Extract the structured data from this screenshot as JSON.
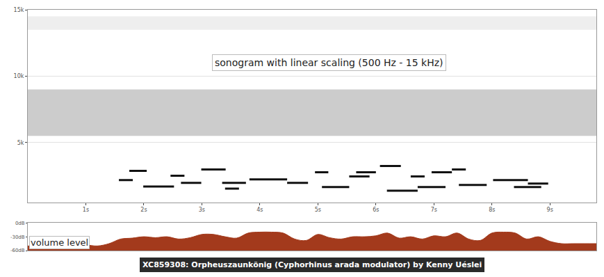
{
  "chart_data": [
    {
      "type": "spectrogram",
      "title": "sonogram with linear scaling (500 Hz - 15 kHz)",
      "color": "#111111",
      "notes": [
        {
          "start": 1.57,
          "end": 1.81,
          "frequency": 2180
        },
        {
          "start": 1.75,
          "end": 2.05,
          "frequency": 2870
        },
        {
          "start": 1.99,
          "end": 2.52,
          "frequency": 1700
        },
        {
          "start": 2.46,
          "end": 2.7,
          "frequency": 2500
        },
        {
          "start": 2.64,
          "end": 2.99,
          "frequency": 1970
        },
        {
          "start": 2.99,
          "end": 3.41,
          "frequency": 2980
        },
        {
          "start": 3.35,
          "end": 3.76,
          "frequency": 1970
        },
        {
          "start": 3.4,
          "end": 3.64,
          "frequency": 1540
        },
        {
          "start": 3.82,
          "end": 4.47,
          "frequency": 2230
        },
        {
          "start": 4.47,
          "end": 4.83,
          "frequency": 1970
        },
        {
          "start": 4.95,
          "end": 5.18,
          "frequency": 2770
        },
        {
          "start": 5.07,
          "end": 5.54,
          "frequency": 1650
        },
        {
          "start": 5.54,
          "end": 5.89,
          "frequency": 2450
        },
        {
          "start": 5.66,
          "end": 6.0,
          "frequency": 2770
        },
        {
          "start": 6.07,
          "end": 6.43,
          "frequency": 3240
        },
        {
          "start": 6.19,
          "end": 6.72,
          "frequency": 1380
        },
        {
          "start": 6.6,
          "end": 6.84,
          "frequency": 2450
        },
        {
          "start": 6.72,
          "end": 7.2,
          "frequency": 1650
        },
        {
          "start": 6.96,
          "end": 7.31,
          "frequency": 2770
        },
        {
          "start": 7.31,
          "end": 7.55,
          "frequency": 2980
        },
        {
          "start": 7.43,
          "end": 7.91,
          "frequency": 1810
        },
        {
          "start": 8.02,
          "end": 8.62,
          "frequency": 2180
        },
        {
          "start": 8.38,
          "end": 8.85,
          "frequency": 1650
        },
        {
          "start": 8.62,
          "end": 8.97,
          "frequency": 1920
        }
      ],
      "noise_bands": [
        [
          5500,
          9000
        ],
        [
          13500,
          14500
        ]
      ],
      "xlim": [
        0,
        9.8
      ],
      "xticks": [
        {
          "value": 1,
          "label": "1s"
        },
        {
          "value": 2,
          "label": "2s"
        },
        {
          "value": 3,
          "label": "3s"
        },
        {
          "value": 4,
          "label": "4s"
        },
        {
          "value": 5,
          "label": "5s"
        },
        {
          "value": 6,
          "label": "6s"
        },
        {
          "value": 7,
          "label": "7s"
        },
        {
          "value": 8,
          "label": "8s"
        },
        {
          "value": 9,
          "label": "9s"
        }
      ],
      "ylim": [
        500,
        15000
      ],
      "yticks": [
        {
          "value": 5000,
          "label": "5k"
        },
        {
          "value": 10000,
          "label": "10k"
        },
        {
          "value": 15000,
          "label": "15k"
        }
      ],
      "grid": true
    },
    {
      "type": "area",
      "title": "volume level",
      "color": "#a33a1c",
      "x": [
        0,
        0.2,
        0.4,
        0.6,
        0.8,
        1.0,
        1.2,
        1.4,
        1.6,
        1.8,
        2.0,
        2.2,
        2.4,
        2.6,
        2.8,
        3.0,
        3.2,
        3.4,
        3.6,
        3.8,
        4.0,
        4.2,
        4.4,
        4.6,
        4.8,
        5.0,
        5.2,
        5.4,
        5.6,
        5.8,
        6.0,
        6.2,
        6.4,
        6.6,
        6.8,
        7.0,
        7.2,
        7.4,
        7.6,
        7.8,
        8.0,
        8.2,
        8.4,
        8.6,
        8.8,
        9.0,
        9.2,
        9.4,
        9.6,
        9.8
      ],
      "values": [
        -50,
        -50,
        -50,
        -48,
        -50,
        -48,
        -50,
        -45,
        -35,
        -33,
        -30,
        -32,
        -30,
        -35,
        -32,
        -25,
        -25,
        -30,
        -33,
        -22,
        -20,
        -20,
        -22,
        -35,
        -38,
        -25,
        -32,
        -35,
        -30,
        -30,
        -28,
        -22,
        -33,
        -30,
        -35,
        -28,
        -30,
        -22,
        -35,
        -38,
        -22,
        -20,
        -22,
        -35,
        -30,
        -40,
        -45,
        -45,
        -45,
        -45
      ],
      "xlim": [
        0,
        9.8
      ],
      "ylim": [
        -60,
        0
      ],
      "yticks": [
        {
          "value": -60,
          "label": "-60dB"
        },
        {
          "value": -30,
          "label": "-30dB"
        },
        {
          "value": 0,
          "label": "0dB"
        }
      ],
      "tick_labels": "y"
    }
  ],
  "caption": "XC859308: Orpheuszaunkönig (Cyphorhinus arada modulator) by Kenny Uéslei"
}
